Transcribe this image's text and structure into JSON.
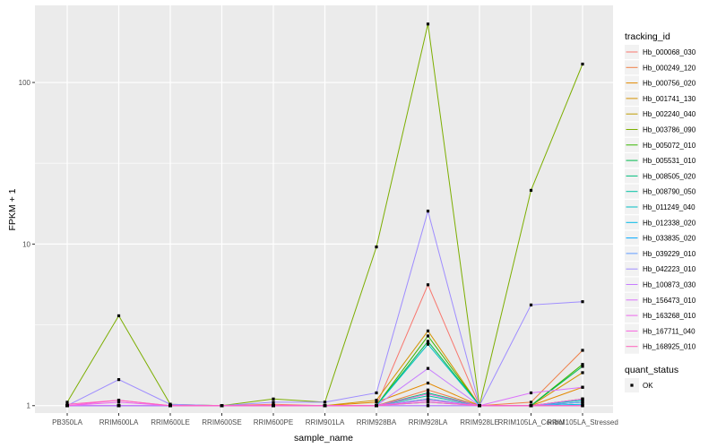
{
  "chart_data": {
    "type": "line",
    "title": "",
    "xlabel": "sample_name",
    "ylabel": "FPKM + 1",
    "y_scale": "log10",
    "ylim": [
      0.9,
      300
    ],
    "y_ticks": [
      1,
      10,
      100
    ],
    "y_tick_labels": [
      "1",
      "10",
      "100"
    ],
    "categories": [
      "PB350LA",
      "RRIM600LA",
      "RRIM600LE",
      "RRIM600SE",
      "RRIM600PE",
      "RRIM901LA",
      "RRIM928BA",
      "RRIM928LA",
      "RRIM928LE",
      "RRIM105LA_Control",
      "RRIM105LA_Stressed"
    ],
    "category_labels": [
      "PB350LA",
      "RRIM600LA",
      "RRIM600LE",
      "RRIM600SE",
      "RRIM600PE",
      "RRIM901LA",
      "RRIM928BA",
      "RRIM928LA",
      "RRIM928LE",
      "RRIM105LA_Control",
      "RRIM105LA_Stressed"
    ],
    "legend": {
      "title": "tracking_id",
      "placement": "right"
    },
    "legend2": {
      "title": "quant_status",
      "items": [
        "OK"
      ]
    },
    "point_color": "#000000",
    "background_color": "#ebebeb",
    "series": [
      {
        "name": "Hb_000068_030",
        "color": "#F8766D",
        "values": [
          1.0,
          1.0,
          1.0,
          1.0,
          1.02,
          1.0,
          1.0,
          5.6,
          1.0,
          1.0,
          1.05
        ]
      },
      {
        "name": "Hb_000249_120",
        "color": "#EF7F47",
        "values": [
          1.0,
          1.0,
          1.0,
          1.0,
          1.0,
          1.0,
          1.0,
          1.25,
          1.0,
          1.05,
          2.2
        ]
      },
      {
        "name": "Hb_000756_020",
        "color": "#E38900",
        "values": [
          1.0,
          1.0,
          1.0,
          1.0,
          1.0,
          1.0,
          1.05,
          1.38,
          1.0,
          1.0,
          1.3
        ]
      },
      {
        "name": "Hb_001741_130",
        "color": "#D39200",
        "values": [
          1.0,
          1.0,
          1.0,
          1.0,
          1.0,
          1.0,
          1.08,
          2.9,
          1.0,
          1.0,
          1.6
        ]
      },
      {
        "name": "Hb_002240_040",
        "color": "#BF9B00",
        "values": [
          1.0,
          1.0,
          1.0,
          1.0,
          1.0,
          1.0,
          1.0,
          1.1,
          1.0,
          1.0,
          1.1
        ]
      },
      {
        "name": "Hb_003786_090",
        "color": "#7CAE00",
        "values": [
          1.05,
          3.6,
          1.02,
          1.0,
          1.1,
          1.05,
          9.6,
          230,
          1.0,
          21.5,
          130
        ]
      },
      {
        "name": "Hb_005072_010",
        "color": "#39B600",
        "values": [
          1.0,
          1.0,
          1.0,
          1.0,
          1.0,
          1.0,
          1.0,
          2.7,
          1.0,
          1.0,
          1.8
        ]
      },
      {
        "name": "Hb_005531_010",
        "color": "#00BB4E",
        "values": [
          1.0,
          1.0,
          1.0,
          1.0,
          1.0,
          1.0,
          1.0,
          2.5,
          1.0,
          1.0,
          1.75
        ]
      },
      {
        "name": "Hb_008505_020",
        "color": "#00BF7D",
        "values": [
          1.0,
          1.0,
          1.0,
          1.0,
          1.0,
          1.0,
          1.0,
          1.2,
          1.0,
          1.0,
          1.05
        ]
      },
      {
        "name": "Hb_008790_050",
        "color": "#00C1A3",
        "values": [
          1.0,
          1.0,
          1.0,
          1.0,
          1.0,
          1.0,
          1.0,
          1.15,
          1.0,
          1.0,
          1.1
        ]
      },
      {
        "name": "Hb_011249_040",
        "color": "#00BFC4",
        "values": [
          1.0,
          1.0,
          1.0,
          1.0,
          1.0,
          1.0,
          1.0,
          2.4,
          1.0,
          1.0,
          1.08
        ]
      },
      {
        "name": "Hb_012338_020",
        "color": "#00B8E7",
        "values": [
          1.0,
          1.0,
          1.0,
          1.0,
          1.0,
          1.0,
          1.0,
          1.05,
          1.0,
          1.0,
          1.02
        ]
      },
      {
        "name": "Hb_033835_020",
        "color": "#00A9FF",
        "values": [
          1.0,
          1.0,
          1.0,
          1.0,
          1.0,
          1.0,
          1.0,
          1.0,
          1.0,
          1.0,
          1.0
        ]
      },
      {
        "name": "Hb_039229_010",
        "color": "#619CFF",
        "values": [
          1.0,
          1.0,
          1.0,
          1.0,
          1.0,
          1.0,
          1.0,
          1.1,
          1.0,
          1.0,
          1.05
        ]
      },
      {
        "name": "Hb_042223_010",
        "color": "#9E8CFF",
        "values": [
          1.0,
          1.45,
          1.02,
          1.0,
          1.05,
          1.05,
          1.2,
          16.0,
          1.0,
          4.2,
          4.4
        ]
      },
      {
        "name": "Hb_100873_030",
        "color": "#C77CFF",
        "values": [
          1.0,
          1.0,
          1.0,
          1.0,
          1.0,
          1.0,
          1.0,
          1.7,
          1.0,
          1.0,
          1.0
        ]
      },
      {
        "name": "Hb_156473_010",
        "color": "#DB72FB",
        "values": [
          1.0,
          1.0,
          1.0,
          1.0,
          1.0,
          1.0,
          1.0,
          1.0,
          1.0,
          1.2,
          1.3
        ]
      },
      {
        "name": "Hb_163268_010",
        "color": "#ED68ED",
        "values": [
          1.0,
          1.05,
          1.0,
          1.0,
          1.0,
          1.0,
          1.0,
          1.08,
          1.0,
          1.0,
          1.0
        ]
      },
      {
        "name": "Hb_167711_040",
        "color": "#F863DF",
        "values": [
          1.0,
          1.08,
          1.0,
          1.0,
          1.0,
          1.0,
          1.0,
          1.18,
          1.0,
          1.0,
          1.1
        ]
      },
      {
        "name": "Hb_168925_010",
        "color": "#FF62BC",
        "values": [
          1.02,
          1.08,
          1.0,
          1.0,
          1.0,
          1.0,
          1.0,
          1.05,
          1.0,
          1.0,
          1.0
        ]
      }
    ]
  }
}
